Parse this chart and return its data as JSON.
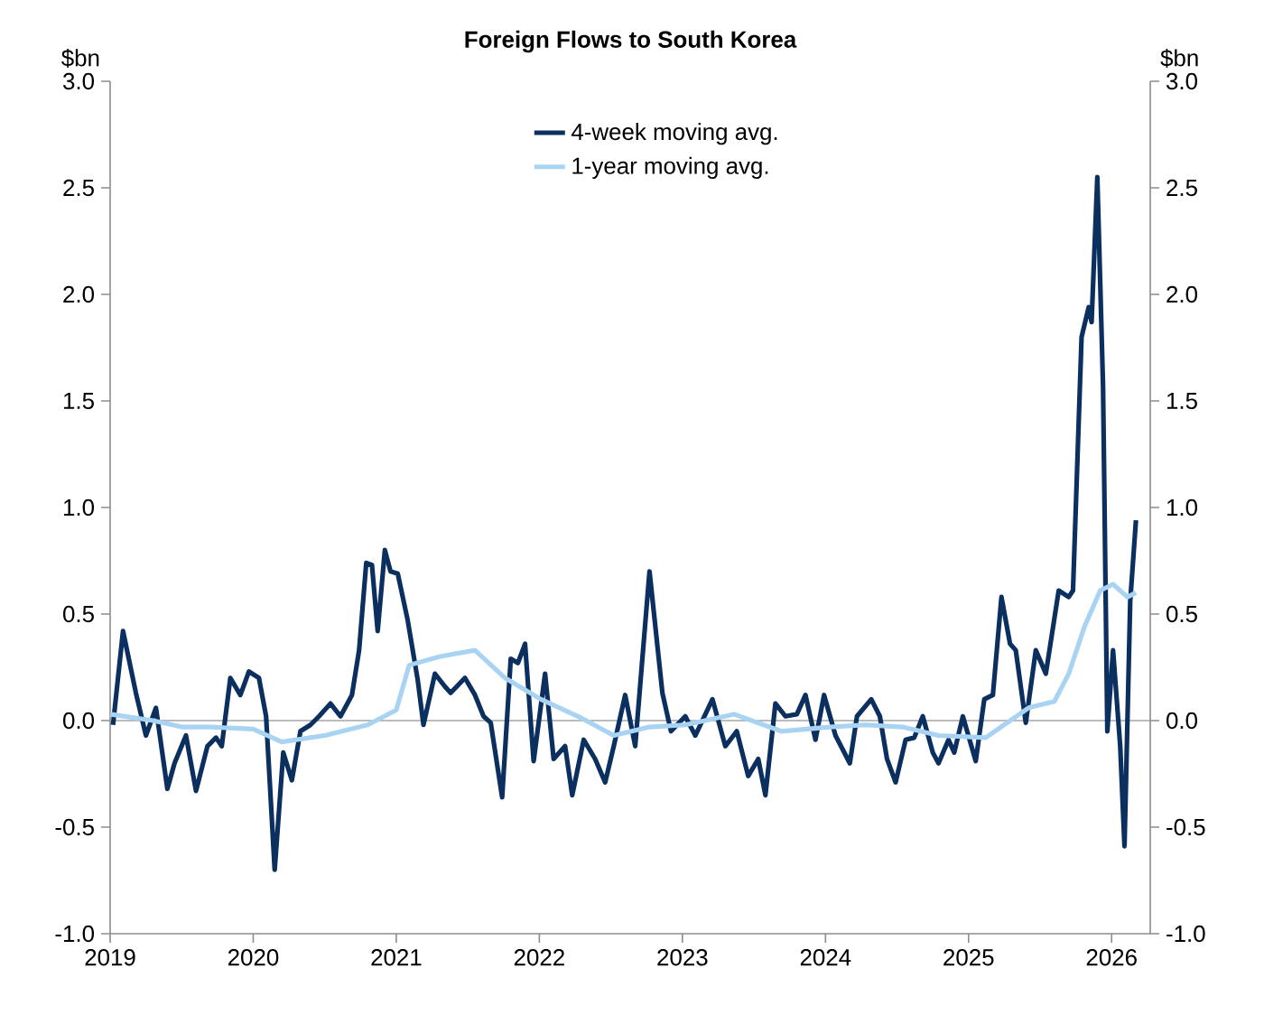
{
  "chart_data": {
    "type": "line",
    "title": "Foreign Flows to South Korea",
    "ylabel": "$bn",
    "y2label": "$bn",
    "xlim": [
      2019,
      2026.27
    ],
    "xticks": [
      2019,
      2020,
      2021,
      2022,
      2023,
      2024,
      2025,
      2026
    ],
    "ylim": [
      -1,
      3
    ],
    "yticks": [
      {
        "value": -1,
        "label": "-1.0"
      },
      {
        "value": -0.5,
        "label": "-0.5"
      },
      {
        "value": 0,
        "label": "0.0"
      },
      {
        "value": 0.5,
        "label": "0.5"
      },
      {
        "value": 1,
        "label": "1.0"
      },
      {
        "value": 1.5,
        "label": "1.5"
      },
      {
        "value": 2,
        "label": "2.0"
      },
      {
        "value": 2.5,
        "label": "2.5"
      },
      {
        "value": 3,
        "label": "3.0"
      }
    ],
    "y2lim": [
      -1,
      3
    ],
    "y2ticks": [
      {
        "value": -1,
        "label": "-1.0"
      },
      {
        "value": -0.5,
        "label": "-0.5"
      },
      {
        "value": 0,
        "label": "0.0"
      },
      {
        "value": 0.5,
        "label": "0.5"
      },
      {
        "value": 1,
        "label": "1.0"
      },
      {
        "value": 1.5,
        "label": "1.5"
      },
      {
        "value": 2,
        "label": "2.0"
      },
      {
        "value": 2.5,
        "label": "2.5"
      },
      {
        "value": 3,
        "label": "3.0"
      }
    ],
    "grid": false,
    "legend": "top",
    "marker": "none",
    "line_style": "solid",
    "ref_lines": [
      {
        "axis": "y",
        "value": 0,
        "color": "#a6a6a6"
      }
    ],
    "series": [
      {
        "name": "4-week moving avg.",
        "color": "#0b2f5e",
        "x": [
          2019.02,
          2019.09,
          2019.18,
          2019.25,
          2019.32,
          2019.4,
          2019.45,
          2019.53,
          2019.6,
          2019.68,
          2019.74,
          2019.78,
          2019.84,
          2019.91,
          2019.97,
          2020.04,
          2020.09,
          2020.15,
          2020.21,
          2020.27,
          2020.33,
          2020.4,
          2020.46,
          2020.54,
          2020.61,
          2020.69,
          2020.74,
          2020.79,
          2020.83,
          2020.87,
          2020.92,
          2020.96,
          2021.01,
          2021.08,
          2021.15,
          2021.19,
          2021.27,
          2021.34,
          2021.38,
          2021.48,
          2021.55,
          2021.61,
          2021.66,
          2021.74,
          2021.8,
          2021.85,
          2021.9,
          2021.96,
          2022.04,
          2022.1,
          2022.18,
          2022.23,
          2022.31,
          2022.39,
          2022.46,
          2022.52,
          2022.6,
          2022.67,
          2022.77,
          2022.86,
          2022.92,
          2023.02,
          2023.09,
          2023.21,
          2023.3,
          2023.38,
          2023.46,
          2023.53,
          2023.58,
          2023.65,
          2023.72,
          2023.8,
          2023.86,
          2023.93,
          2023.99,
          2024.07,
          2024.17,
          2024.22,
          2024.32,
          2024.38,
          2024.43,
          2024.49,
          2024.56,
          2024.62,
          2024.68,
          2024.75,
          2024.79,
          2024.86,
          2024.9,
          2024.96,
          2025.05,
          2025.11,
          2025.17,
          2025.23,
          2025.29,
          2025.33,
          2025.4,
          2025.47,
          2025.54,
          2025.63,
          2025.7,
          2025.73,
          2025.79,
          2025.84,
          2025.86,
          2025.9,
          2025.94,
          2025.97,
          2026.01,
          2026.06,
          2026.09,
          2026.13,
          2026.17
        ],
        "values": [
          -0.02,
          0.42,
          0.13,
          -0.07,
          0.06,
          -0.32,
          -0.2,
          -0.07,
          -0.33,
          -0.12,
          -0.08,
          -0.12,
          0.2,
          0.12,
          0.23,
          0.2,
          0.02,
          -0.7,
          -0.15,
          -0.28,
          -0.05,
          -0.02,
          0.02,
          0.08,
          0.02,
          0.12,
          0.33,
          0.74,
          0.73,
          0.42,
          0.8,
          0.7,
          0.69,
          0.47,
          0.19,
          -0.02,
          0.22,
          0.16,
          0.13,
          0.2,
          0.12,
          0.02,
          -0.01,
          -0.36,
          0.29,
          0.27,
          0.36,
          -0.19,
          0.22,
          -0.18,
          -0.12,
          -0.35,
          -0.09,
          -0.18,
          -0.29,
          -0.12,
          0.12,
          -0.12,
          0.7,
          0.13,
          -0.05,
          0.02,
          -0.07,
          0.1,
          -0.12,
          -0.05,
          -0.26,
          -0.18,
          -0.35,
          0.08,
          0.02,
          0.03,
          0.12,
          -0.09,
          0.12,
          -0.07,
          -0.2,
          0.02,
          0.1,
          0.02,
          -0.18,
          -0.29,
          -0.09,
          -0.08,
          0.02,
          -0.15,
          -0.2,
          -0.09,
          -0.15,
          0.02,
          -0.19,
          0.1,
          0.12,
          0.58,
          0.36,
          0.33,
          -0.01,
          0.33,
          0.22,
          0.61,
          0.58,
          0.61,
          1.8,
          1.94,
          1.87,
          2.55,
          1.57,
          -0.05,
          0.33,
          -0.12,
          -0.59,
          0.56,
          0.94
        ]
      },
      {
        "name": "1-year moving avg.",
        "color": "#a9d3f2",
        "x": [
          2019.0,
          2019.3,
          2019.5,
          2019.7,
          2020.0,
          2020.2,
          2020.5,
          2020.8,
          2021.0,
          2021.09,
          2021.3,
          2021.55,
          2021.76,
          2022.01,
          2022.27,
          2022.52,
          2022.77,
          2023.02,
          2023.36,
          2023.69,
          2024.03,
          2024.28,
          2024.54,
          2024.79,
          2025.12,
          2025.42,
          2025.6,
          2025.7,
          2025.81,
          2025.92,
          2026.01,
          2026.11,
          2026.17
        ],
        "values": [
          0.03,
          0.0,
          -0.03,
          -0.03,
          -0.04,
          -0.1,
          -0.07,
          -0.02,
          0.05,
          0.26,
          0.3,
          0.33,
          0.2,
          0.1,
          0.02,
          -0.07,
          -0.03,
          -0.02,
          0.03,
          -0.05,
          -0.03,
          -0.02,
          -0.03,
          -0.07,
          -0.08,
          0.06,
          0.09,
          0.22,
          0.44,
          0.61,
          0.64,
          0.58,
          0.6
        ]
      }
    ]
  }
}
